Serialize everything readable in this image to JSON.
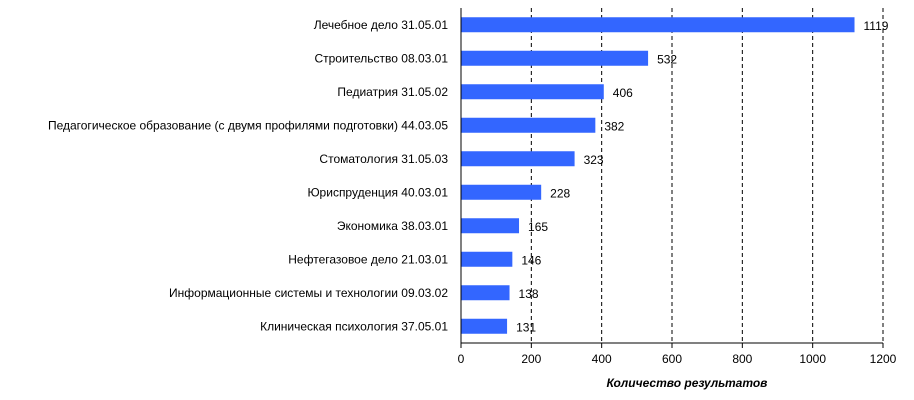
{
  "chart_data": {
    "type": "bar",
    "orientation": "horizontal",
    "categories": [
      "Лечебное дело 31.05.01",
      "Строительство 08.03.01",
      "Педиатрия 31.05.02",
      "Педагогическое образование (с двумя профилями подготовки) 44.03.05",
      "Стоматология 31.05.03",
      "Юриспруденция 40.03.01",
      "Экономика 38.03.01",
      "Нефтегазовое дело 21.03.01",
      "Информационные системы и технологии 09.03.02",
      "Клиническая психология 37.05.01"
    ],
    "values": [
      1119,
      532,
      406,
      382,
      323,
      228,
      165,
      146,
      138,
      131
    ],
    "xticks": [
      "0",
      "200",
      "400",
      "600",
      "800",
      "1000",
      "1200"
    ],
    "xlim": [
      0,
      1200
    ],
    "xlabel": "Количество результатов",
    "ylabel": "",
    "title": "",
    "grid": "vertical dashed",
    "bar_color": "#3366ff",
    "value_labels": true
  }
}
